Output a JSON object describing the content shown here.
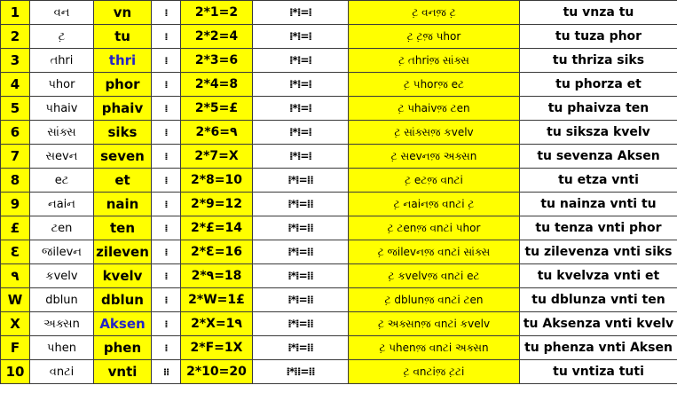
{
  "rows": [
    {
      "num": "1",
      "script": "વન",
      "latin": "vn",
      "dots": "⁞",
      "eq": "2*1=2",
      "dotseq": "⁞*⁞=⁞",
      "phrase_script": "ટ઼ વનજ઼ ટ઼",
      "phrase_latin": "tu vnza tu"
    },
    {
      "num": "2",
      "script": "ટ઼",
      "latin": "tu",
      "dots": "⁞",
      "eq": "2*2=4",
      "dotseq": "⁞*⁞=⁞",
      "phrase_script": "ટ઼ ટ઼જ઼ પhor",
      "phrase_latin": "tu tuza phor"
    },
    {
      "num": "3",
      "script": "તhri",
      "latin": "thri",
      "dots": "⁞",
      "eq": "2*3=6",
      "dotseq": "⁞*⁞=⁞",
      "phrase_script": "ટ઼ તhriજ઼ સાંક્સ",
      "phrase_latin": "tu thriza siks"
    },
    {
      "num": "4",
      "script": "પhor",
      "latin": "phor",
      "dots": "⁞",
      "eq": "2*4=8",
      "dotseq": "⁞*⁞=⁞",
      "phrase_script": "ટ઼ પhorજ઼ eટ",
      "phrase_latin": "tu phorza et"
    },
    {
      "num": "5",
      "script": "પhaiv",
      "latin": "phaiv",
      "dots": "⁞",
      "eq": "2*5=£",
      "dotseq": "⁞*⁞=⁞",
      "phrase_script": "ટ઼ પhaivજ઼ ટen",
      "phrase_latin": "tu phaivza ten"
    },
    {
      "num": "6",
      "script": "સાંક્સ",
      "latin": "siks",
      "dots": "⁞",
      "eq": "2*6=٩",
      "dotseq": "⁞*⁞=⁞",
      "phrase_script": "ટ઼ સાંક્સજ઼ કvelv",
      "phrase_latin": "tu siksza kvelv"
    },
    {
      "num": "7",
      "script": "સevન",
      "latin": "seven",
      "dots": "⁞",
      "eq": "2*7=X",
      "dotseq": "⁞*⁞=⁞",
      "phrase_script": "ટ઼ સevનજ઼ અક્સn",
      "phrase_latin": "tu sevenza Aksen"
    },
    {
      "num": "8",
      "script": "eટ",
      "latin": "et",
      "dots": "⁞",
      "eq": "2*8=10",
      "dotseq": "⁞*⁞=⁞⁞",
      "phrase_script": "ટ઼ eટજ઼ વnટi",
      "phrase_latin": "tu etza vnti"
    },
    {
      "num": "9",
      "script": "નaiન",
      "latin": "nain",
      "dots": "⁞",
      "eq": "2*9=12",
      "dotseq": "⁞*⁞=⁞⁞",
      "phrase_script": "ટ઼ નaiનજ઼ વnટi ટ઼",
      "phrase_latin": "tu nainza vnti tu"
    },
    {
      "num": "£",
      "script": "ટen",
      "latin": "ten",
      "dots": "⁞",
      "eq": "2*£=14",
      "dotseq": "⁞*⁞=⁞⁞",
      "phrase_script": "ટ઼ ટenજ઼ વnટi પhor",
      "phrase_latin": "tu tenza vnti phor"
    },
    {
      "num": "Ɛ",
      "script": "જilevન",
      "latin": "zileven",
      "dots": "⁞",
      "eq": "2*Ɛ=16",
      "dotseq": "⁞*⁞=⁞⁞",
      "phrase_script": "ટ઼ જilevનજ઼ વnટi સાંક્સ",
      "phrase_latin": "tu zilevenza vnti siks"
    },
    {
      "num": "٩",
      "script": "કvelv",
      "latin": "kvelv",
      "dots": "⁞",
      "eq": "2*٩=18",
      "dotseq": "⁞*⁞=⁞⁞",
      "phrase_script": "ટ઼ કvelvજ઼ વnટi eટ",
      "phrase_latin": "tu kvelvza vnti et"
    },
    {
      "num": "W",
      "script": "dblun",
      "latin": "dblun",
      "dots": "⁞",
      "eq": "2*W=1£",
      "dotseq": "⁞*⁞=⁞⁞",
      "phrase_script": "ટ઼ dblunજ઼ વnટi ટen",
      "phrase_latin": "tu dblunza vnti ten"
    },
    {
      "num": "X",
      "script": "અક્સn",
      "latin": "Aksen",
      "dots": "⁞",
      "eq": "2*X=1٩",
      "dotseq": "⁞*⁞=⁞⁞",
      "phrase_script": "ટ઼ અક્સnજ઼ વnટi કvelv",
      "phrase_latin": "tu Aksenza vnti kvelv"
    },
    {
      "num": "F",
      "script": "પhen",
      "latin": "phen",
      "dots": "⁞",
      "eq": "2*F=1X",
      "dotseq": "⁞*⁞=⁞⁞",
      "phrase_script": "ટ઼ પhenજ઼ વnટi અક્સn",
      "phrase_latin": "tu phenza vnti Aksen"
    },
    {
      "num": "10",
      "script": "વnટi",
      "latin": "vnti",
      "dots": "⁞⁞",
      "eq": "2*10=20",
      "dotseq": "⁞*⁞⁞=⁞⁞",
      "phrase_script": "ટ઼ વnટiજ઼ ટ઼ટi",
      "phrase_latin": "tu vntiza tuti"
    }
  ],
  "colors": {
    "highlight": "#ffff00",
    "blue_text": "#2323c8",
    "border": "#3a3a3a"
  }
}
